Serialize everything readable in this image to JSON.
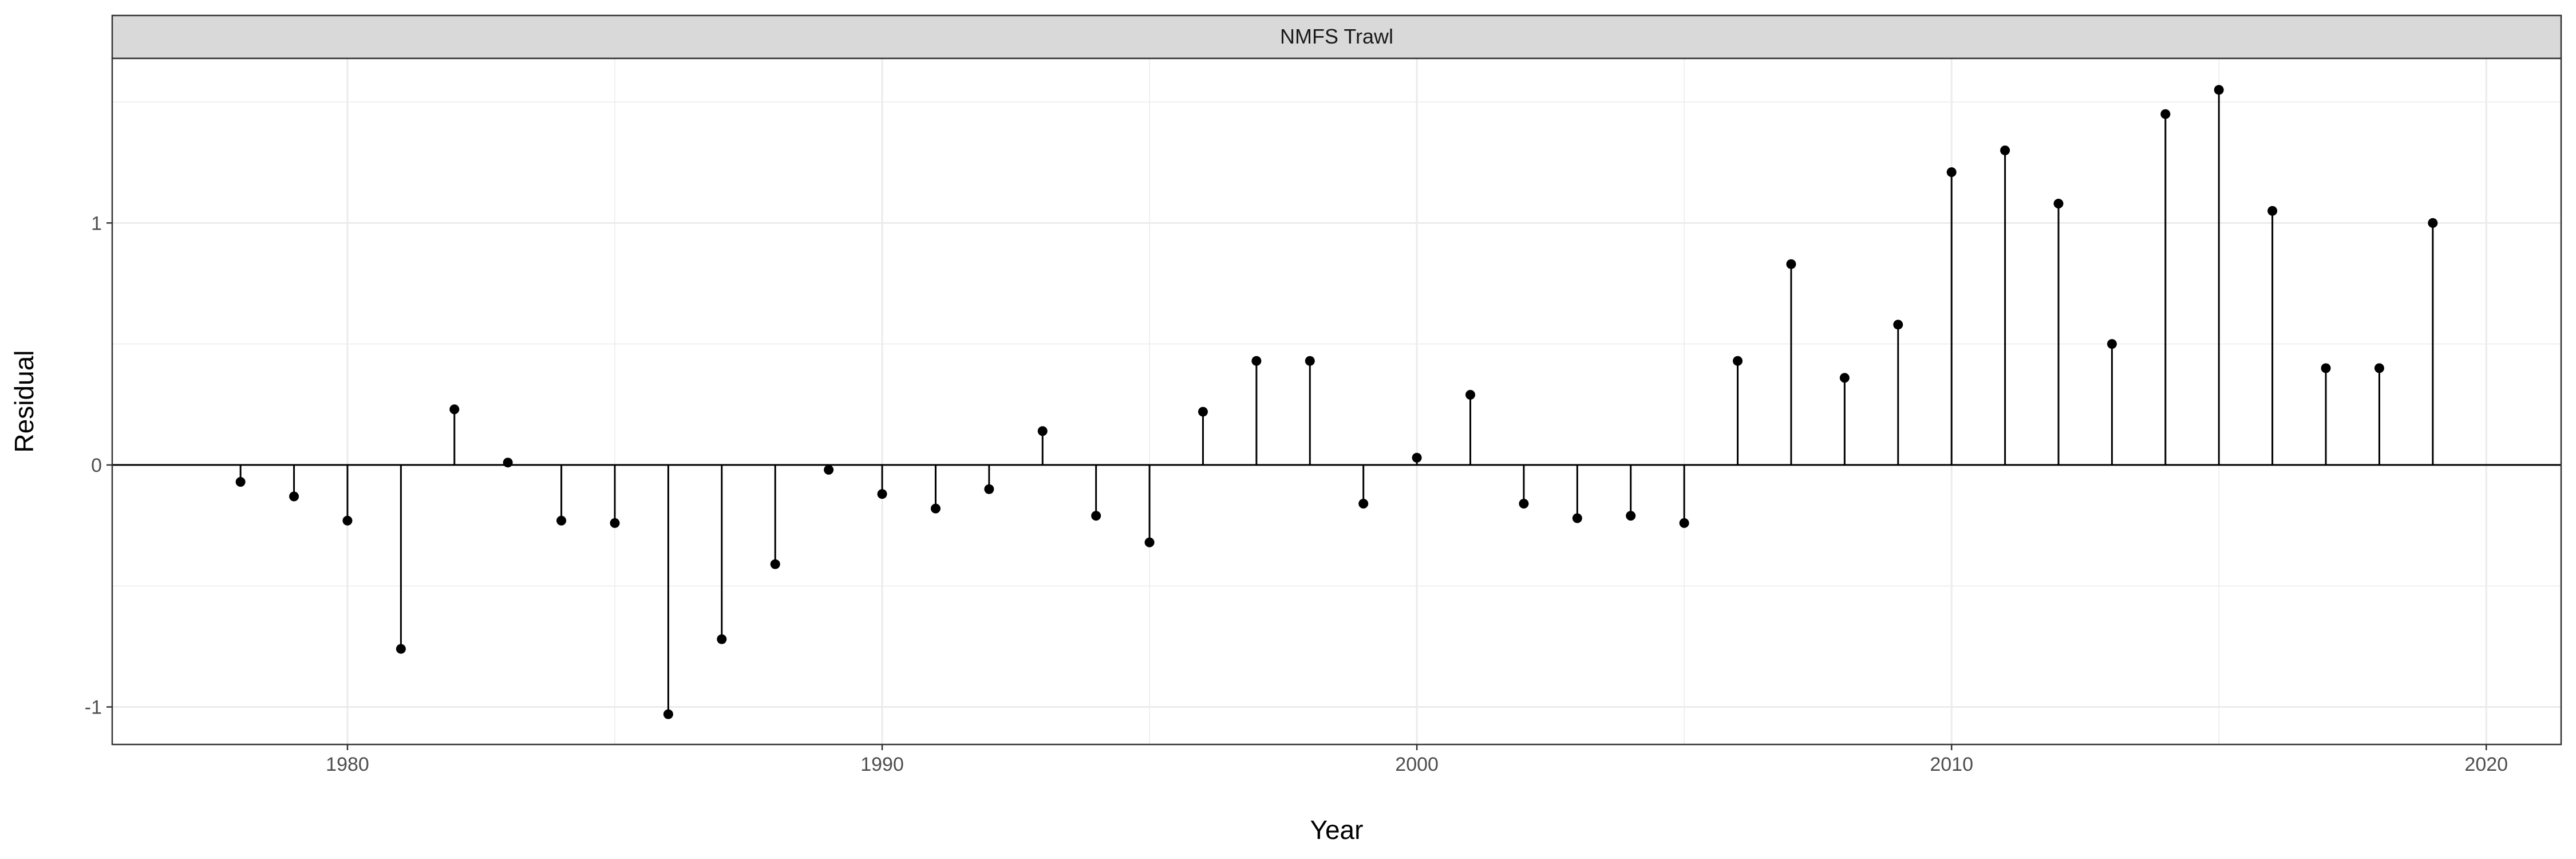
{
  "chart_data": {
    "type": "scatter",
    "style": "lollipop",
    "panel_title": "NMFS Trawl",
    "xlabel": "Year",
    "ylabel": "Residual",
    "xlim": [
      1975.6,
      2021.4
    ],
    "ylim": [
      -1.155,
      1.68
    ],
    "x_ticks": [
      1980,
      1990,
      2000,
      2010,
      2020
    ],
    "y_ticks": [
      -1,
      0,
      1
    ],
    "reference_line": 0,
    "grid": true,
    "colors": {
      "points": "#000000",
      "strip_fill": "#d9d9d9",
      "grid": "#ebebeb"
    },
    "x": [
      1978,
      1979,
      1980,
      1981,
      1982,
      1983,
      1984,
      1985,
      1986,
      1987,
      1988,
      1989,
      1990,
      1991,
      1992,
      1993,
      1994,
      1995,
      1996,
      1997,
      1998,
      1999,
      2000,
      2001,
      2002,
      2003,
      2004,
      2005,
      2006,
      2007,
      2008,
      2009,
      2010,
      2011,
      2012,
      2013,
      2014,
      2015,
      2016,
      2017,
      2018,
      2019
    ],
    "values": [
      -0.07,
      -0.13,
      -0.23,
      -0.76,
      0.23,
      0.01,
      -0.23,
      -0.24,
      -1.03,
      -0.72,
      -0.41,
      -0.02,
      -0.12,
      -0.18,
      -0.1,
      0.14,
      -0.21,
      -0.32,
      0.22,
      0.43,
      0.43,
      -0.16,
      0.03,
      0.29,
      -0.16,
      -0.22,
      -0.21,
      -0.24,
      0.43,
      0.83,
      0.36,
      0.58,
      1.21,
      1.3,
      1.08,
      0.5,
      1.45,
      1.55,
      1.05,
      0.4,
      0.4,
      1.0
    ]
  }
}
